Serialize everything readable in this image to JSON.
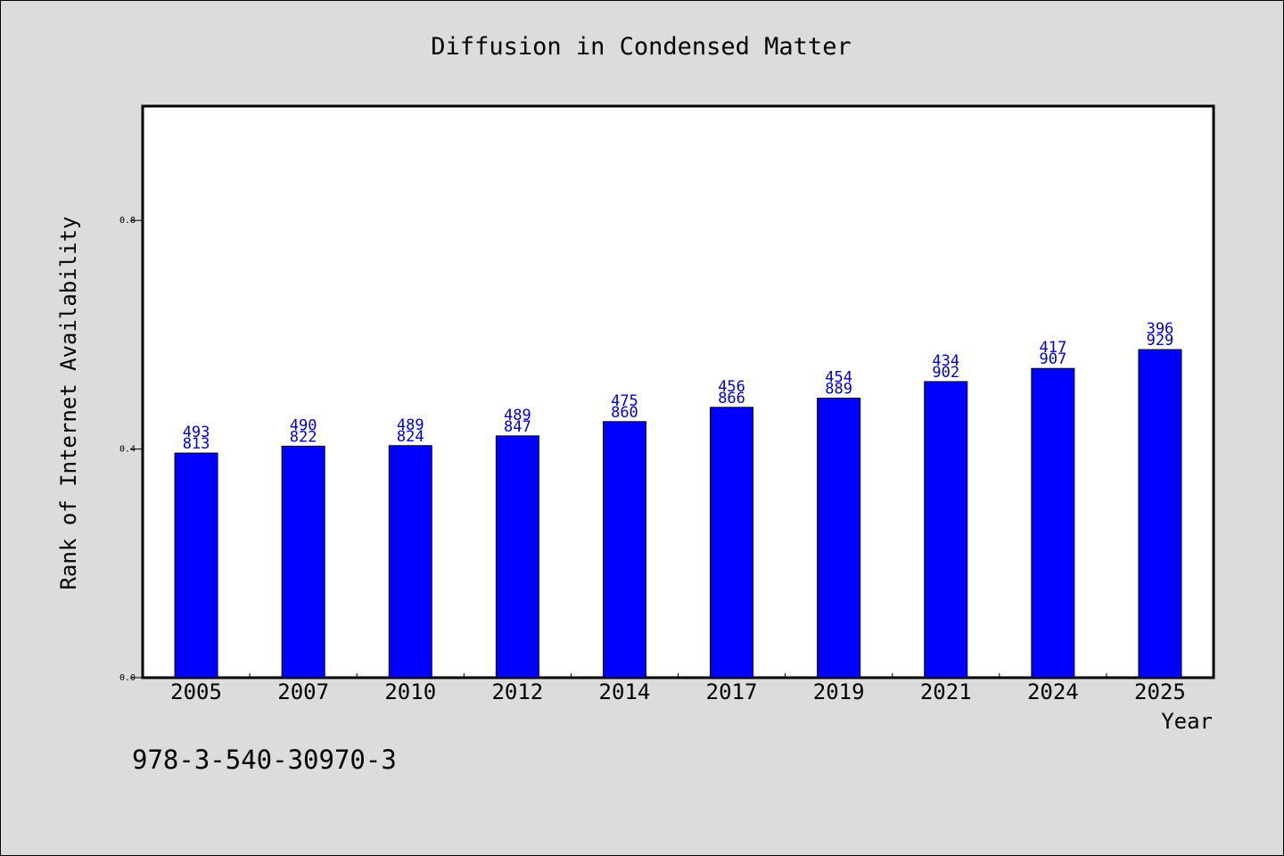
{
  "chart_data": {
    "type": "bar",
    "title": "Diffusion in Condensed Matter",
    "xlabel": "Year",
    "ylabel": "Rank of Internet Availability",
    "categories": [
      "2005",
      "2007",
      "2010",
      "2012",
      "2014",
      "2017",
      "2019",
      "2021",
      "2024",
      "2025"
    ],
    "values": [
      0.393,
      0.405,
      0.406,
      0.423,
      0.448,
      0.473,
      0.489,
      0.518,
      0.541,
      0.574
    ],
    "data_labels": [
      [
        "493",
        "813"
      ],
      [
        "490",
        "822"
      ],
      [
        "489",
        "824"
      ],
      [
        "489",
        "847"
      ],
      [
        "475",
        "860"
      ],
      [
        "456",
        "866"
      ],
      [
        "454",
        "889"
      ],
      [
        "434",
        "902"
      ],
      [
        "417",
        "907"
      ],
      [
        "396",
        "929"
      ]
    ],
    "ylim": [
      0.0,
      1.0
    ],
    "yticks": [
      "0.0",
      "0.4",
      "0.8"
    ],
    "ytick_values": [
      0.0,
      0.4,
      0.8
    ],
    "grid": false,
    "bar_color": "#0000ff",
    "label_color": "#0000cc",
    "plot_background": "#ffffff",
    "page_background": "#dcdcdc"
  },
  "footer": {
    "isbn": "978-3-540-30970-3"
  }
}
